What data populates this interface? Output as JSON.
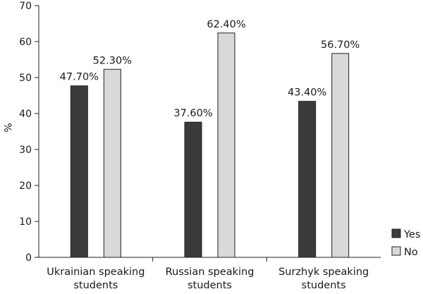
{
  "chart_data": {
    "type": "bar",
    "title": "",
    "xlabel": "",
    "ylabel": "%",
    "ylim": [
      0,
      70
    ],
    "yticks": [
      0,
      10,
      20,
      30,
      40,
      50,
      60,
      70
    ],
    "categories": [
      [
        "Ukrainian speaking",
        "students"
      ],
      [
        "Russian speaking",
        "students"
      ],
      [
        "Surzhyk speaking",
        "students"
      ]
    ],
    "series": [
      {
        "name": "Yes",
        "color": "#3a3a3a",
        "values": [
          47.7,
          37.6,
          43.4
        ],
        "labels": [
          "47.70%",
          "37.60%",
          "43.40%"
        ]
      },
      {
        "name": "No",
        "color": "#d9d9d9",
        "values": [
          52.3,
          62.4,
          56.7
        ],
        "labels": [
          "52.30%",
          "62.40%",
          "56.70%"
        ]
      }
    ],
    "legend": "right",
    "grid": false
  }
}
